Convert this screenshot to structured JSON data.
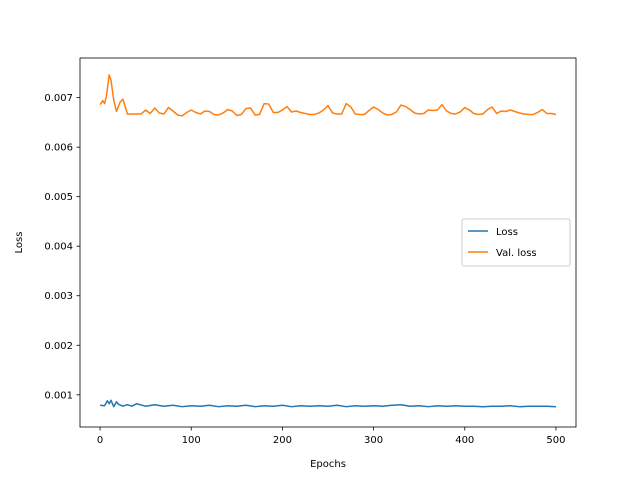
{
  "chart_data": {
    "type": "line",
    "title": "",
    "xlabel": "Epochs",
    "ylabel": "Loss",
    "xlim": [
      -22,
      522
    ],
    "ylim": [
      0.00035,
      0.0078
    ],
    "x_ticks": [
      0,
      100,
      200,
      300,
      400,
      500
    ],
    "x_tick_labels": [
      "0",
      "100",
      "200",
      "300",
      "400",
      "500"
    ],
    "y_ticks": [
      0.001,
      0.002,
      0.003,
      0.004,
      0.005,
      0.006,
      0.007
    ],
    "y_tick_labels": [
      "0.001",
      "0.002",
      "0.003",
      "0.004",
      "0.005",
      "0.006",
      "0.007"
    ],
    "grid": false,
    "legend_position": "center-right",
    "series": [
      {
        "name": "Loss",
        "color": "#1f77b4",
        "x": [
          0,
          5,
          8,
          10,
          12,
          15,
          18,
          20,
          25,
          30,
          35,
          40,
          50,
          60,
          70,
          80,
          90,
          100,
          110,
          120,
          130,
          140,
          150,
          160,
          170,
          180,
          190,
          200,
          210,
          220,
          230,
          240,
          250,
          260,
          270,
          280,
          290,
          300,
          310,
          320,
          330,
          340,
          350,
          360,
          370,
          380,
          390,
          400,
          410,
          420,
          430,
          440,
          450,
          460,
          470,
          480,
          490,
          500
        ],
        "values": [
          0.00079,
          0.00078,
          0.00088,
          0.00082,
          0.00089,
          0.00076,
          0.00086,
          0.00081,
          0.00077,
          0.0008,
          0.00077,
          0.00082,
          0.00077,
          0.0008,
          0.00077,
          0.00079,
          0.00076,
          0.00078,
          0.00077,
          0.00079,
          0.00076,
          0.00078,
          0.00077,
          0.00079,
          0.00076,
          0.00078,
          0.00077,
          0.00079,
          0.00076,
          0.00078,
          0.00077,
          0.00078,
          0.00077,
          0.00079,
          0.00076,
          0.00078,
          0.00077,
          0.00078,
          0.00077,
          0.00079,
          0.0008,
          0.00077,
          0.00078,
          0.00076,
          0.00078,
          0.00077,
          0.00078,
          0.00077,
          0.00077,
          0.00076,
          0.00077,
          0.00077,
          0.00078,
          0.00076,
          0.00077,
          0.00077,
          0.00077,
          0.00076
        ]
      },
      {
        "name": "Val. loss",
        "color": "#ff7f0e",
        "x": [
          0,
          3,
          5,
          7,
          10,
          12,
          15,
          18,
          22,
          25,
          30,
          35,
          40,
          45,
          50,
          55,
          60,
          65,
          70,
          75,
          80,
          85,
          90,
          95,
          100,
          105,
          110,
          115,
          120,
          125,
          130,
          135,
          140,
          145,
          150,
          155,
          160,
          165,
          170,
          175,
          180,
          185,
          190,
          195,
          200,
          205,
          210,
          215,
          220,
          225,
          230,
          235,
          240,
          245,
          250,
          255,
          260,
          265,
          270,
          275,
          280,
          285,
          290,
          295,
          300,
          305,
          310,
          315,
          320,
          325,
          330,
          335,
          340,
          345,
          350,
          355,
          360,
          365,
          370,
          375,
          380,
          385,
          390,
          395,
          400,
          405,
          410,
          415,
          420,
          425,
          430,
          435,
          440,
          445,
          450,
          455,
          460,
          465,
          470,
          475,
          480,
          485,
          490,
          495,
          500
        ],
        "values": [
          0.00686,
          0.00694,
          0.00688,
          0.00703,
          0.00746,
          0.00735,
          0.00695,
          0.00672,
          0.00691,
          0.00697,
          0.00667,
          0.00667,
          0.00667,
          0.00667,
          0.00675,
          0.00668,
          0.00679,
          0.00669,
          0.00667,
          0.0068,
          0.00673,
          0.00665,
          0.00663,
          0.0067,
          0.00675,
          0.0067,
          0.00667,
          0.00673,
          0.00672,
          0.00666,
          0.00665,
          0.00669,
          0.00676,
          0.00673,
          0.00664,
          0.00666,
          0.00678,
          0.00679,
          0.00665,
          0.00666,
          0.00688,
          0.00687,
          0.0067,
          0.0067,
          0.00675,
          0.00682,
          0.00671,
          0.00673,
          0.0067,
          0.00668,
          0.00666,
          0.00666,
          0.00669,
          0.00675,
          0.00684,
          0.00669,
          0.00667,
          0.00667,
          0.00688,
          0.00681,
          0.00667,
          0.00666,
          0.00666,
          0.00674,
          0.00681,
          0.00676,
          0.00669,
          0.00665,
          0.00666,
          0.00671,
          0.00685,
          0.00682,
          0.00676,
          0.00669,
          0.00667,
          0.00668,
          0.00675,
          0.00674,
          0.00675,
          0.00686,
          0.00673,
          0.00668,
          0.00667,
          0.00671,
          0.0068,
          0.00675,
          0.00668,
          0.00666,
          0.00667,
          0.00676,
          0.00681,
          0.00668,
          0.00673,
          0.00672,
          0.00675,
          0.00672,
          0.00669,
          0.00667,
          0.00666,
          0.00666,
          0.0067,
          0.00676,
          0.00668,
          0.00668,
          0.00666
        ]
      }
    ]
  }
}
